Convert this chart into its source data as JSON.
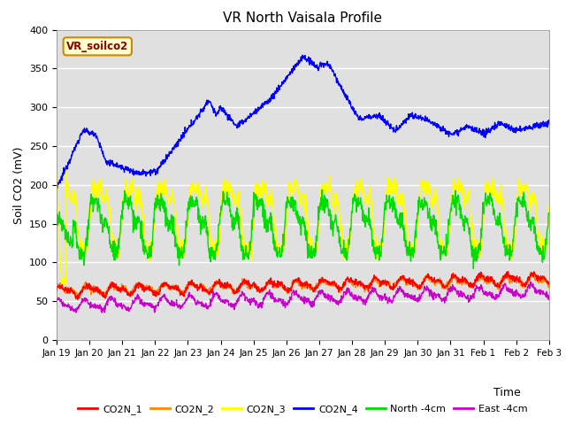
{
  "title": "VR North Vaisala Profile",
  "ylabel": "Soil CO2 (mV)",
  "xlabel": "Time",
  "ylim": [
    0,
    400
  ],
  "yticks": [
    0,
    50,
    100,
    150,
    200,
    250,
    300,
    350,
    400
  ],
  "xtick_labels": [
    "Jan 19",
    "Jan 20",
    "Jan 21",
    "Jan 22",
    "Jan 23",
    "Jan 24",
    "Jan 25",
    "Jan 26",
    "Jan 27",
    "Jan 28",
    "Jan 29",
    "Jan 30",
    "Jan 31",
    "Feb 1",
    "Feb 2",
    "Feb 3"
  ],
  "colors": {
    "CO2N_1": "#ff0000",
    "CO2N_2": "#ff8800",
    "CO2N_3": "#ffff00",
    "CO2N_4": "#0000ff",
    "North_4cm": "#00dd00",
    "East_4cm": "#cc00cc"
  },
  "background_color": "#e0e0e0",
  "annotation_text": "VR_soilco2",
  "annotation_facecolor": "#ffffcc",
  "annotation_edgecolor": "#cc8800",
  "line_width": 1.0
}
